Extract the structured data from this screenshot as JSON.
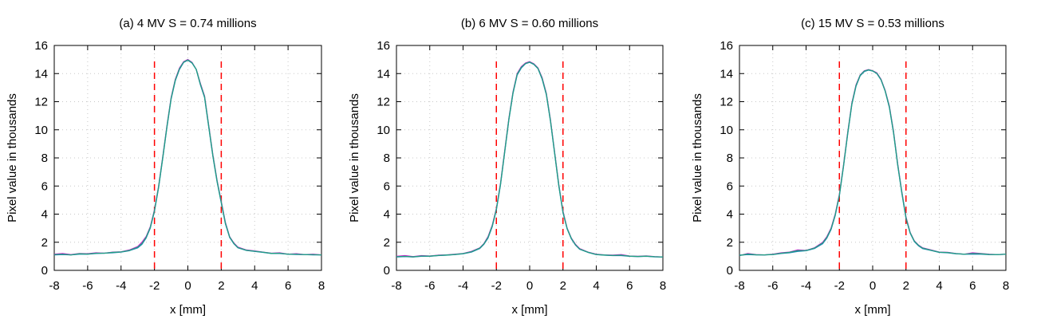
{
  "colors": {
    "series_a": "#d020d0",
    "series_b": "#2080c0",
    "series_c": "#20a080",
    "markers": "#ff0000"
  },
  "chart_data": [
    {
      "type": "line",
      "title": "(a) 4 MV S = 0.74 millions",
      "xlabel": "x [mm]",
      "ylabel": "Pixel value in thousands",
      "xlim": [
        -8,
        8
      ],
      "ylim": [
        0,
        16
      ],
      "xticks": [
        "-8",
        "-6",
        "-4",
        "-2",
        "0",
        "2",
        "4",
        "6",
        "8"
      ],
      "yticks": [
        "0",
        "2",
        "4",
        "6",
        "8",
        "10",
        "12",
        "14",
        "16"
      ],
      "grid": true,
      "vertical_lines": [
        -2,
        2
      ],
      "x": [
        -8,
        -7.5,
        -7,
        -6.5,
        -6,
        -5.5,
        -5,
        -4.5,
        -4,
        -3.5,
        -3,
        -2.75,
        -2.5,
        -2.25,
        -2,
        -1.75,
        -1.5,
        -1.25,
        -1,
        -0.75,
        -0.5,
        -0.25,
        0,
        0.25,
        0.5,
        0.75,
        1,
        1.25,
        1.5,
        1.75,
        2,
        2.25,
        2.5,
        2.75,
        3,
        3.5,
        4,
        4.5,
        5,
        5.5,
        6,
        6.5,
        7,
        7.5,
        8
      ],
      "series": [
        {
          "values": [
            1.15,
            1.2,
            1.12,
            1.2,
            1.18,
            1.25,
            1.22,
            1.3,
            1.32,
            1.45,
            1.7,
            2.0,
            2.4,
            3.1,
            4.3,
            6.0,
            8.1,
            10.3,
            12.3,
            13.6,
            14.4,
            14.85,
            15.0,
            14.8,
            14.3,
            13.3,
            12.4,
            10.3,
            8.2,
            6.4,
            4.9,
            3.4,
            2.4,
            1.95,
            1.65,
            1.45,
            1.38,
            1.3,
            1.22,
            1.25,
            1.15,
            1.18,
            1.12,
            1.15,
            1.1
          ]
        },
        {
          "values": [
            1.1,
            1.12,
            1.1,
            1.15,
            1.15,
            1.2,
            1.22,
            1.25,
            1.3,
            1.4,
            1.6,
            1.85,
            2.3,
            3.0,
            4.2,
            5.9,
            8.0,
            10.2,
            12.2,
            13.5,
            14.3,
            14.8,
            14.95,
            14.75,
            14.3,
            13.2,
            12.3,
            10.2,
            8.1,
            6.3,
            4.8,
            3.3,
            2.35,
            1.9,
            1.6,
            1.42,
            1.35,
            1.28,
            1.2,
            1.2,
            1.15,
            1.13,
            1.12,
            1.1,
            1.1
          ]
        },
        {
          "values": [
            1.12,
            1.15,
            1.1,
            1.18,
            1.16,
            1.22,
            1.22,
            1.28,
            1.31,
            1.42,
            1.65,
            1.9,
            2.35,
            3.05,
            4.25,
            5.95,
            8.05,
            10.25,
            12.25,
            13.55,
            14.35,
            14.82,
            14.97,
            14.77,
            14.3,
            13.25,
            12.35,
            10.25,
            8.15,
            6.35,
            4.85,
            3.35,
            2.38,
            1.92,
            1.62,
            1.43,
            1.36,
            1.29,
            1.21,
            1.22,
            1.15,
            1.15,
            1.12,
            1.12,
            1.1
          ]
        }
      ]
    },
    {
      "type": "line",
      "title": "(b) 6 MV S = 0.60 millions",
      "xlabel": "x [mm]",
      "ylabel": "Pixel value in thousands",
      "xlim": [
        -8,
        8
      ],
      "ylim": [
        0,
        16
      ],
      "xticks": [
        "-8",
        "-6",
        "-4",
        "-2",
        "0",
        "2",
        "4",
        "6",
        "8"
      ],
      "yticks": [
        "0",
        "2",
        "4",
        "6",
        "8",
        "10",
        "12",
        "14",
        "16"
      ],
      "grid": true,
      "vertical_lines": [
        -2,
        2
      ],
      "x": [
        -8,
        -7.5,
        -7,
        -6.5,
        -6,
        -5.5,
        -5,
        -4.5,
        -4,
        -3.5,
        -3,
        -2.75,
        -2.5,
        -2.25,
        -2,
        -1.75,
        -1.5,
        -1.25,
        -1,
        -0.75,
        -0.5,
        -0.25,
        0,
        0.25,
        0.5,
        0.75,
        1,
        1.25,
        1.5,
        1.75,
        2,
        2.25,
        2.5,
        2.75,
        3,
        3.5,
        4,
        4.5,
        5,
        5.5,
        6,
        6.5,
        7,
        7.5,
        8
      ],
      "series": [
        {
          "values": [
            1.0,
            1.05,
            0.98,
            1.05,
            1.02,
            1.08,
            1.1,
            1.15,
            1.2,
            1.35,
            1.6,
            1.9,
            2.4,
            3.2,
            4.4,
            6.2,
            8.5,
            10.8,
            12.7,
            14.0,
            14.5,
            14.75,
            14.85,
            14.7,
            14.4,
            13.7,
            12.6,
            10.7,
            8.4,
            6.1,
            4.2,
            3.0,
            2.3,
            1.85,
            1.55,
            1.3,
            1.15,
            1.1,
            1.08,
            1.12,
            1.02,
            1.0,
            1.03,
            0.98,
            0.95
          ]
        },
        {
          "values": [
            0.95,
            0.98,
            0.95,
            1.0,
            1.0,
            1.05,
            1.08,
            1.12,
            1.18,
            1.3,
            1.55,
            1.85,
            2.3,
            3.1,
            4.3,
            6.1,
            8.4,
            10.7,
            12.6,
            13.9,
            14.4,
            14.7,
            14.8,
            14.65,
            14.35,
            13.6,
            12.5,
            10.6,
            8.3,
            6.0,
            4.1,
            2.95,
            2.25,
            1.8,
            1.5,
            1.28,
            1.12,
            1.08,
            1.05,
            1.05,
            1.0,
            0.98,
            1.0,
            0.96,
            0.95
          ]
        },
        {
          "values": [
            0.97,
            1.0,
            0.96,
            1.02,
            1.01,
            1.06,
            1.09,
            1.13,
            1.19,
            1.32,
            1.58,
            1.88,
            2.35,
            3.15,
            4.35,
            6.15,
            8.45,
            10.75,
            12.65,
            13.95,
            14.45,
            14.72,
            14.82,
            14.67,
            14.37,
            13.65,
            12.55,
            10.65,
            8.35,
            6.05,
            4.15,
            2.98,
            2.28,
            1.82,
            1.52,
            1.29,
            1.13,
            1.09,
            1.06,
            1.08,
            1.01,
            0.99,
            1.01,
            0.97,
            0.95
          ]
        }
      ]
    },
    {
      "type": "line",
      "title": "(c) 15 MV S = 0.53 millions",
      "xlabel": "x [mm]",
      "ylabel": "Pixel value in thousands",
      "xlim": [
        -8,
        8
      ],
      "ylim": [
        0,
        16
      ],
      "xticks": [
        "-8",
        "-6",
        "-4",
        "-2",
        "0",
        "2",
        "4",
        "6",
        "8"
      ],
      "yticks": [
        "0",
        "2",
        "4",
        "6",
        "8",
        "10",
        "12",
        "14",
        "16"
      ],
      "grid": true,
      "vertical_lines": [
        -2,
        2
      ],
      "x": [
        -8,
        -7.5,
        -7,
        -6.5,
        -6,
        -5.5,
        -5,
        -4.5,
        -4,
        -3.5,
        -3,
        -2.75,
        -2.5,
        -2.25,
        -2,
        -1.75,
        -1.5,
        -1.25,
        -1,
        -0.75,
        -0.5,
        -0.25,
        0,
        0.25,
        0.5,
        0.75,
        1,
        1.25,
        1.5,
        1.75,
        2,
        2.25,
        2.5,
        2.75,
        3,
        3.5,
        4,
        4.5,
        5,
        5.5,
        6,
        6.5,
        7,
        7.5,
        8
      ],
      "series": [
        {
          "values": [
            1.05,
            1.2,
            1.12,
            1.1,
            1.15,
            1.25,
            1.3,
            1.45,
            1.42,
            1.6,
            2.0,
            2.4,
            3.0,
            4.0,
            5.4,
            7.5,
            9.8,
            11.9,
            13.2,
            13.9,
            14.2,
            14.28,
            14.2,
            14.05,
            13.6,
            12.8,
            11.7,
            9.9,
            7.6,
            5.6,
            3.8,
            2.7,
            2.1,
            1.8,
            1.6,
            1.45,
            1.3,
            1.28,
            1.2,
            1.15,
            1.25,
            1.2,
            1.15,
            1.12,
            1.15
          ]
        },
        {
          "values": [
            1.08,
            1.12,
            1.1,
            1.1,
            1.12,
            1.2,
            1.25,
            1.35,
            1.4,
            1.55,
            1.9,
            2.3,
            2.9,
            3.9,
            5.3,
            7.4,
            9.7,
            11.8,
            13.1,
            13.85,
            14.15,
            14.25,
            14.18,
            14.0,
            13.55,
            12.75,
            11.6,
            9.8,
            7.5,
            5.5,
            3.7,
            2.65,
            2.05,
            1.75,
            1.55,
            1.42,
            1.28,
            1.25,
            1.18,
            1.15,
            1.15,
            1.15,
            1.12,
            1.12,
            1.15
          ]
        },
        {
          "values": [
            1.06,
            1.16,
            1.11,
            1.1,
            1.13,
            1.22,
            1.28,
            1.4,
            1.41,
            1.58,
            1.95,
            2.35,
            2.95,
            3.95,
            5.35,
            7.45,
            9.75,
            11.85,
            13.15,
            13.88,
            14.18,
            14.27,
            14.19,
            14.02,
            13.57,
            12.77,
            11.65,
            9.85,
            7.55,
            5.55,
            3.75,
            2.68,
            2.08,
            1.78,
            1.58,
            1.43,
            1.29,
            1.27,
            1.19,
            1.15,
            1.2,
            1.18,
            1.13,
            1.12,
            1.15
          ]
        }
      ]
    }
  ]
}
